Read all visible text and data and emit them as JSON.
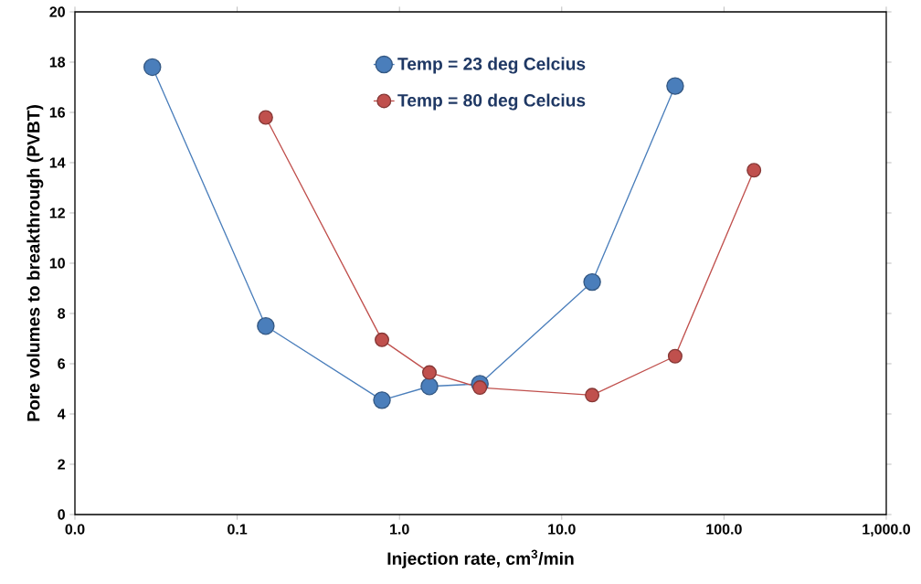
{
  "chart_data": {
    "type": "line",
    "xlabel": "Injection rate, cm$^{3}$/min",
    "ylabel": "Pore volumes to breakthrough (PVBT)",
    "log": "x",
    "xlim": [
      0.01,
      1000
    ],
    "ylim": [
      0,
      20
    ],
    "xticks": [
      {
        "value": 0.01,
        "label": "0.0"
      },
      {
        "value": 0.1,
        "label": "0.1"
      },
      {
        "value": 1,
        "label": "1.0"
      },
      {
        "value": 10,
        "label": "10.0"
      },
      {
        "value": 100,
        "label": "100.0"
      },
      {
        "value": 1000,
        "label": "1,000.0"
      }
    ],
    "yticks": [
      0,
      2,
      4,
      6,
      8,
      10,
      12,
      14,
      16,
      18,
      20
    ],
    "grid": false,
    "legend": "top",
    "marker": "circle",
    "line_style": "solid",
    "series": [
      {
        "name": "Temp = 23 deg Celcius",
        "color": "#4a7ebb",
        "x": [
          0.03,
          0.15,
          0.78,
          1.53,
          3.13,
          15.4,
          50
        ],
        "values": [
          17.8,
          7.5,
          4.55,
          5.1,
          5.2,
          9.25,
          17.05
        ]
      },
      {
        "name": "Temp = 80 deg Celcius",
        "color": "#c0504d",
        "x": [
          0.15,
          0.78,
          1.53,
          3.13,
          15.4,
          50,
          153
        ],
        "values": [
          15.8,
          6.95,
          5.65,
          5.05,
          4.75,
          6.3,
          13.7
        ]
      }
    ]
  }
}
